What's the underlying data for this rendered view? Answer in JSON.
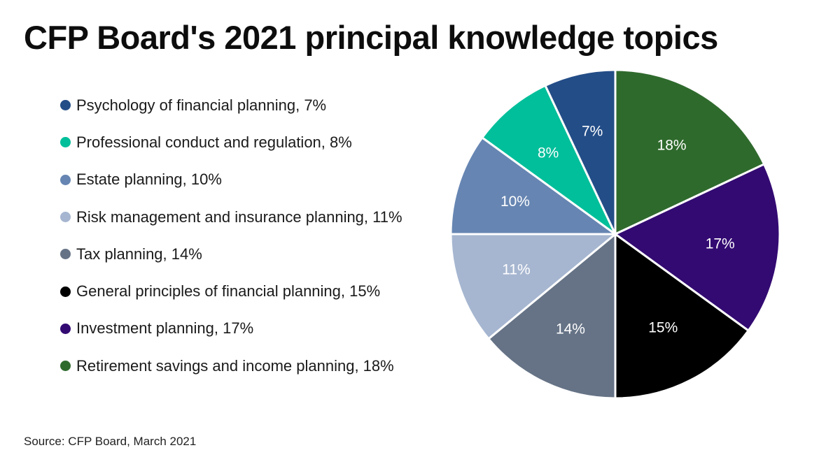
{
  "chart_data": {
    "type": "pie",
    "title": "CFP Board's 2021 principal knowledge topics",
    "source": "Source: CFP Board, March 2021",
    "legend_position": "left",
    "start_angle_deg": 0,
    "direction": "clockwise",
    "slices": [
      {
        "label": "Retirement savings and income planning",
        "value": 18,
        "value_label": "18%",
        "legend_text": "Retirement savings and income planning, 18%",
        "color": "#2f6a2d"
      },
      {
        "label": "Investment planning",
        "value": 17,
        "value_label": "17%",
        "legend_text": "Investment planning, 17%",
        "color": "#330a72"
      },
      {
        "label": "General principles of financial planning",
        "value": 15,
        "value_label": "15%",
        "legend_text": "General principles of financial planning, 15%",
        "color": "#000000"
      },
      {
        "label": "Tax planning",
        "value": 14,
        "value_label": "14%",
        "legend_text": "Tax planning, 14%",
        "color": "#667386"
      },
      {
        "label": "Risk management and insurance planning",
        "value": 11,
        "value_label": "11%",
        "legend_text": "Risk management and insurance planning, 11%",
        "color": "#a6b6d0"
      },
      {
        "label": "Estate planning",
        "value": 10,
        "value_label": "10%",
        "legend_text": "Estate planning, 10%",
        "color": "#6685b2"
      },
      {
        "label": "Professional conduct and regulation",
        "value": 8,
        "value_label": "8%",
        "legend_text": "Professional conduct and regulation, 8%",
        "color": "#00bf9a"
      },
      {
        "label": "Psychology of financial planning",
        "value": 7,
        "value_label": "7%",
        "legend_text": "Psychology of financial planning, 7%",
        "color": "#234d87"
      }
    ],
    "legend_order": [
      "Psychology of financial planning",
      "Professional conduct and regulation",
      "Estate planning",
      "Risk management and insurance planning",
      "Tax planning",
      "General principles of financial planning",
      "Investment planning",
      "Retirement savings and income planning"
    ]
  }
}
